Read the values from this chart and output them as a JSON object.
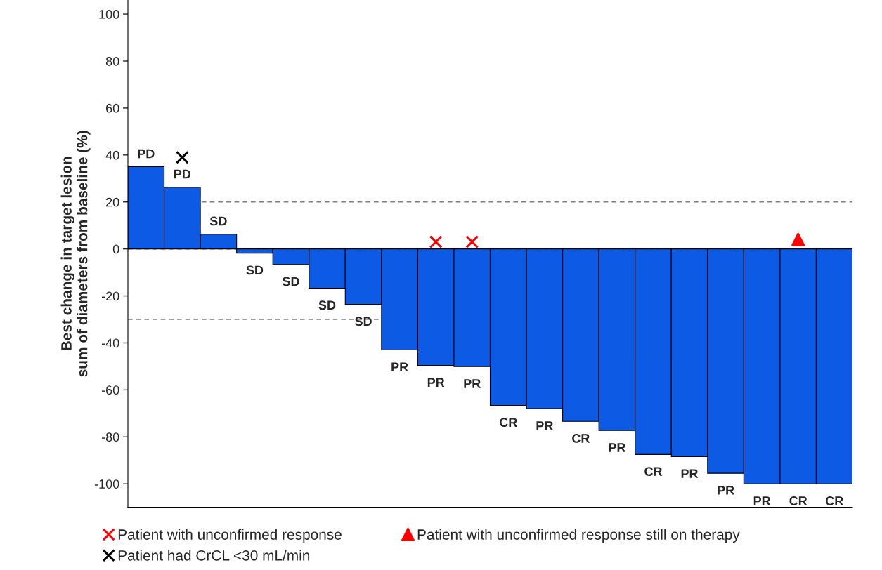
{
  "chart_data": {
    "type": "bar",
    "categories": [
      null,
      null,
      null,
      null,
      null,
      null,
      null,
      null,
      null,
      null,
      null,
      null,
      null,
      null,
      null,
      null,
      null,
      null,
      null,
      null
    ],
    "ylabel": "Best change in target lesion\nsum of diameters from baseline (%)",
    "ylim": [
      -110,
      106
    ],
    "yticks": [
      -100,
      -80,
      -60,
      -40,
      -20,
      0,
      20,
      40,
      60,
      80,
      100
    ],
    "grid": false,
    "legend": "bottom",
    "ref_lines": [
      {
        "axis": "y",
        "value": 20,
        "color": "#808080",
        "line_style": "dashed"
      },
      {
        "axis": "y",
        "value": 0,
        "color": "#808080",
        "line_style": "dashed"
      },
      {
        "axis": "y",
        "value": -30,
        "color": "#808080",
        "line_style": "dashed"
      }
    ],
    "series": [
      {
        "type": "bar",
        "color": "#0d5ae5",
        "values": [
          35,
          26.3,
          6.3,
          -1.8,
          -6.6,
          -16.7,
          -23.6,
          -43,
          -49.6,
          -50.1,
          -66.6,
          -68,
          -73.4,
          -77.3,
          -87.5,
          -88.4,
          -95.5,
          -100,
          -100,
          -100
        ],
        "value_labels": [
          "PD",
          "PD",
          "SD",
          "SD",
          "SD",
          "SD",
          "SD",
          "PR",
          "PR",
          "PR",
          "CR",
          "PR",
          "CR",
          "PR",
          "CR",
          "PR",
          "PR",
          "PR",
          "CR",
          "CR"
        ]
      },
      {
        "type": "scatter",
        "name": "Patient with unconfirmed response",
        "color": "#ff0000",
        "marker": "cross",
        "values": [
          null,
          null,
          null,
          null,
          null,
          null,
          null,
          null,
          3,
          3,
          null,
          null,
          null,
          null,
          null,
          null,
          null,
          null,
          null,
          null
        ]
      },
      {
        "type": "scatter",
        "name": "Patient had CrCL <30 mL/min",
        "color": "#000000",
        "marker": "cross",
        "values": [
          null,
          39,
          null,
          null,
          null,
          null,
          null,
          null,
          null,
          null,
          null,
          null,
          null,
          null,
          null,
          null,
          null,
          null,
          null,
          null
        ]
      },
      {
        "type": "scatter",
        "name": "Patient with unconfirmed response still on therapy",
        "color": "#ff0000",
        "marker": "triangle",
        "values": [
          null,
          null,
          null,
          null,
          null,
          null,
          null,
          null,
          null,
          null,
          null,
          null,
          null,
          null,
          null,
          null,
          null,
          null,
          4,
          null
        ]
      }
    ]
  }
}
